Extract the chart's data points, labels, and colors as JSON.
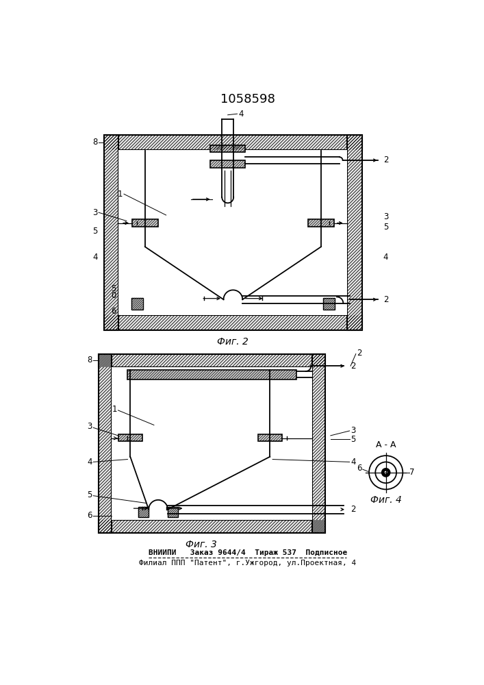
{
  "title": "1058598",
  "fig2_label": "Фиг. 2",
  "fig3_label": "Фиг. 3",
  "fig4_label": "Фиг. 4",
  "fig4_section_label": "A - A",
  "footer_line1": "ВНИИПИ   Заказ 9644/4  Тираж 537  Подписное",
  "footer_line2": "Филиал ППП \"Патент\", г.Ужгород, ул.Проектная, 4",
  "bg_color": "#ffffff",
  "line_color": "#000000"
}
